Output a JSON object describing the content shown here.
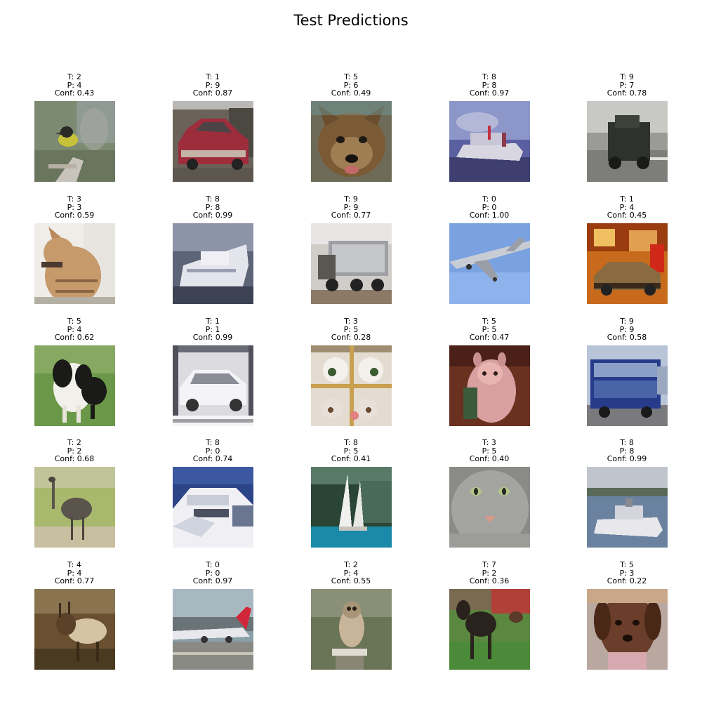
{
  "title": "Test Predictions",
  "colors": {
    "background": "#ffffff",
    "text": "#000000"
  },
  "predictions": [
    {
      "true_label": "T: 2",
      "pred_label": "P: 4",
      "confidence": "Conf: 0.43",
      "subject": "small yellow bird perched on a branch"
    },
    {
      "true_label": "T: 1",
      "pred_label": "P: 9",
      "confidence": "Conf: 0.87",
      "subject": "red car parked"
    },
    {
      "true_label": "T: 5",
      "pred_label": "P: 6",
      "confidence": "Conf: 0.49",
      "subject": "dog face close-up"
    },
    {
      "true_label": "T: 8",
      "pred_label": "P: 8",
      "confidence": "Conf: 0.97",
      "subject": "white boat on water"
    },
    {
      "true_label": "T: 9",
      "pred_label": "P: 7",
      "confidence": "Conf: 0.78",
      "subject": "dark truck on road"
    },
    {
      "true_label": "T: 3",
      "pred_label": "P: 3",
      "confidence": "Conf: 0.59",
      "subject": "tabby cat sitting"
    },
    {
      "true_label": "T: 8",
      "pred_label": "P: 8",
      "confidence": "Conf: 0.99",
      "subject": "white ship"
    },
    {
      "true_label": "T: 9",
      "pred_label": "P: 9",
      "confidence": "Conf: 0.77",
      "subject": "grey dump truck"
    },
    {
      "true_label": "T: 0",
      "pred_label": "P: 0",
      "confidence": "Conf: 1.00",
      "subject": "airplane in blue sky"
    },
    {
      "true_label": "T: 1",
      "pred_label": "P: 4",
      "confidence": "Conf: 0.45",
      "subject": "car in orange showroom"
    },
    {
      "true_label": "T: 5",
      "pred_label": "P: 4",
      "confidence": "Conf: 0.62",
      "subject": "black and white dog on grass"
    },
    {
      "true_label": "T: 1",
      "pred_label": "P: 1",
      "confidence": "Conf: 0.99",
      "subject": "white car"
    },
    {
      "true_label": "T: 3",
      "pred_label": "P: 5",
      "confidence": "Conf: 0.28",
      "subject": "cat faces behind window"
    },
    {
      "true_label": "T: 5",
      "pred_label": "P: 5",
      "confidence": "Conf: 0.47",
      "subject": "pink dog"
    },
    {
      "true_label": "T: 9",
      "pred_label": "P: 9",
      "confidence": "Conf: 0.58",
      "subject": "blue bus"
    },
    {
      "true_label": "T: 2",
      "pred_label": "P: 2",
      "confidence": "Conf: 0.68",
      "subject": "ostrich on grass"
    },
    {
      "true_label": "T: 8",
      "pred_label": "P: 0",
      "confidence": "Conf: 0.74",
      "subject": "white speed boat"
    },
    {
      "true_label": "T: 8",
      "pred_label": "P: 5",
      "confidence": "Conf: 0.41",
      "subject": "sailboat on blue water"
    },
    {
      "true_label": "T: 3",
      "pred_label": "P: 5",
      "confidence": "Conf: 0.40",
      "subject": "grey cat face"
    },
    {
      "true_label": "T: 8",
      "pred_label": "P: 8",
      "confidence": "Conf: 0.99",
      "subject": "white boat on lake"
    },
    {
      "true_label": "T: 4",
      "pred_label": "P: 4",
      "confidence": "Conf: 0.77",
      "subject": "deer in brown field"
    },
    {
      "true_label": "T: 0",
      "pred_label": "P: 0",
      "confidence": "Conf: 0.97",
      "subject": "airplane on runway"
    },
    {
      "true_label": "T: 2",
      "pred_label": "P: 4",
      "confidence": "Conf: 0.55",
      "subject": "owl-like bird perched"
    },
    {
      "true_label": "T: 7",
      "pred_label": "P: 2",
      "confidence": "Conf: 0.36",
      "subject": "dark horse on grass"
    },
    {
      "true_label": "T: 5",
      "pred_label": "P: 3",
      "confidence": "Conf: 0.22",
      "subject": "brown dog face"
    }
  ]
}
